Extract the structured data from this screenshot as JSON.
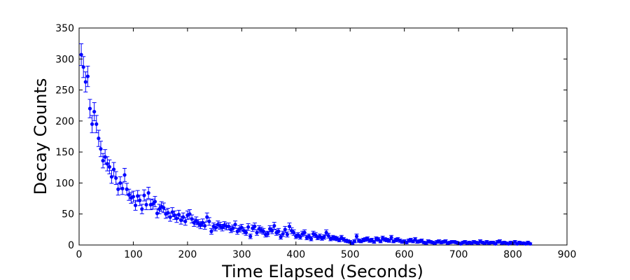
{
  "chart_data": {
    "type": "scatter",
    "xlabel": "Time Elapsed (Seconds)",
    "ylabel": "Decay Counts",
    "xlim": [
      0,
      900
    ],
    "ylim": [
      0,
      350
    ],
    "xticks": [
      0,
      100,
      200,
      300,
      400,
      500,
      600,
      700,
      800,
      900
    ],
    "yticks": [
      0,
      50,
      100,
      150,
      200,
      250,
      300,
      350
    ],
    "grid": false,
    "color": "#0000ff",
    "error_bars": true,
    "error_model": "sqrt(counts)",
    "x": [
      4,
      8,
      12,
      16,
      20,
      24,
      28,
      32,
      36,
      40,
      44,
      48,
      52,
      56,
      60,
      64,
      68,
      72,
      76,
      80,
      84,
      88,
      92,
      96,
      100,
      104,
      108,
      112,
      116,
      120,
      124,
      128,
      132,
      136,
      140,
      144,
      148,
      152,
      156,
      160,
      164,
      168,
      172,
      176,
      180,
      184,
      188,
      192,
      196,
      200,
      204,
      208,
      212,
      216,
      220,
      224,
      228,
      232,
      236,
      240,
      244,
      248,
      252,
      256,
      260,
      264,
      268,
      272,
      276,
      280,
      284,
      288,
      292,
      296,
      300,
      304,
      308,
      312,
      316,
      320,
      324,
      328,
      332,
      336,
      340,
      344,
      348,
      352,
      356,
      360,
      364,
      368,
      372,
      376,
      380,
      384,
      388,
      392,
      396,
      400,
      404,
      408,
      412,
      416,
      420,
      424,
      428,
      432,
      436,
      440,
      444,
      448,
      452,
      456,
      460,
      464,
      468,
      472,
      476,
      480,
      484,
      488,
      492,
      496,
      500,
      504,
      508,
      512,
      516,
      520,
      524,
      528,
      532,
      536,
      540,
      544,
      548,
      552,
      556,
      560,
      564,
      568,
      572,
      576,
      580,
      584,
      588,
      592,
      596,
      600,
      604,
      608,
      612,
      616,
      620,
      624,
      628,
      632,
      636,
      640,
      644,
      648,
      652,
      656,
      660,
      664,
      668,
      672,
      676,
      680,
      684,
      688,
      692,
      696,
      700,
      704,
      708,
      712,
      716,
      720,
      724,
      728,
      732,
      736,
      740,
      744,
      748,
      752,
      756,
      760,
      764,
      768,
      772,
      776,
      780,
      784,
      788,
      792,
      796,
      800,
      804,
      808,
      812,
      816,
      820,
      824,
      828,
      832
    ],
    "y": [
      307,
      287,
      263,
      272,
      220,
      195,
      215,
      195,
      172,
      155,
      136,
      142,
      131,
      126,
      110,
      122,
      108,
      90,
      100,
      91,
      113,
      90,
      81,
      76,
      78,
      64,
      79,
      72,
      58,
      80,
      65,
      84,
      65,
      66,
      70,
      51,
      58,
      62,
      60,
      50,
      52,
      45,
      53,
      48,
      43,
      49,
      40,
      45,
      38,
      48,
      50,
      42,
      36,
      39,
      35,
      32,
      36,
      31,
      45,
      38,
      22,
      30,
      28,
      33,
      31,
      28,
      32,
      30,
      30,
      25,
      27,
      33,
      22,
      26,
      28,
      23,
      20,
      29,
      14,
      27,
      30,
      20,
      26,
      24,
      22,
      17,
      18,
      26,
      23,
      31,
      20,
      22,
      13,
      18,
      25,
      17,
      30,
      23,
      20,
      14,
      16,
      13,
      18,
      20,
      12,
      14,
      10,
      18,
      16,
      12,
      14,
      11,
      13,
      20,
      15,
      10,
      12,
      11,
      10,
      8,
      12,
      9,
      7,
      6,
      5,
      3,
      6,
      14,
      7,
      6,
      8,
      9,
      10,
      7,
      8,
      5,
      10,
      9,
      6,
      11,
      9,
      8,
      7,
      12,
      6,
      8,
      9,
      7,
      5,
      6,
      4,
      7,
      8,
      6,
      9,
      5,
      6,
      7,
      4,
      3,
      6,
      5,
      4,
      3,
      5,
      6,
      4,
      5,
      6,
      3,
      4,
      5,
      5,
      4,
      3,
      2,
      4,
      5,
      3,
      4,
      3,
      5,
      4,
      3,
      6,
      4,
      3,
      5,
      3,
      4,
      4,
      2,
      5,
      6,
      3,
      4,
      3,
      2,
      4,
      3,
      5,
      2,
      4,
      3,
      3,
      2,
      4,
      2
    ]
  }
}
